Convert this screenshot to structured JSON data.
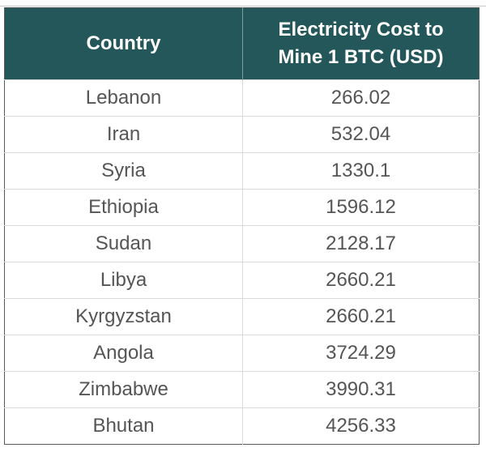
{
  "table": {
    "headers": [
      "Country",
      "Electricity Cost to\nMine 1 BTC (USD)"
    ],
    "header_line1": "Electricity Cost to",
    "header_line2": "Mine 1 BTC (USD)",
    "rows": [
      {
        "country": "Lebanon",
        "cost": "266.02"
      },
      {
        "country": "Iran",
        "cost": "532.04"
      },
      {
        "country": "Syria",
        "cost": "1330.1"
      },
      {
        "country": "Ethiopia",
        "cost": "1596.12"
      },
      {
        "country": "Sudan",
        "cost": "2128.17"
      },
      {
        "country": "Libya",
        "cost": "2660.21"
      },
      {
        "country": "Kyrgyzstan",
        "cost": "2660.21"
      },
      {
        "country": "Angola",
        "cost": "3724.29"
      },
      {
        "country": "Zimbabwe",
        "cost": "3990.31"
      },
      {
        "country": "Bhutan",
        "cost": "4256.33"
      }
    ]
  },
  "colors": {
    "header_bg": "#23575a",
    "header_text": "#ffffff",
    "cell_text": "#555555"
  }
}
